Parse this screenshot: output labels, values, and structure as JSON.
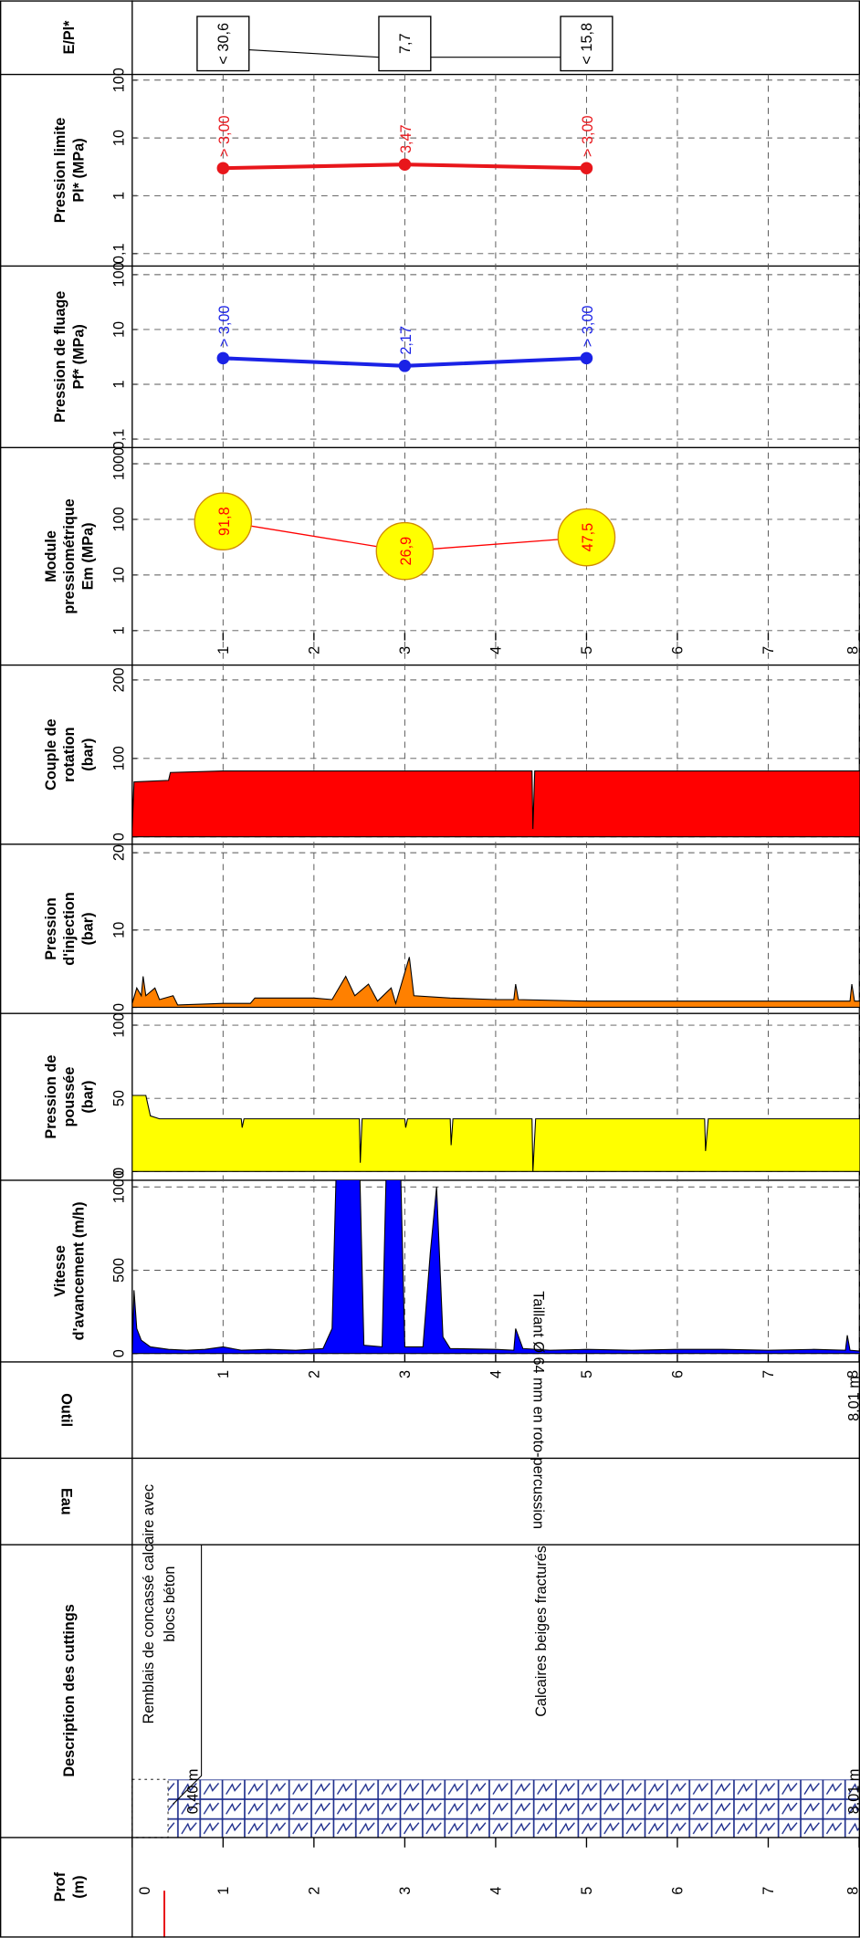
{
  "depth": {
    "title_lines": [
      "Prof",
      "(m)"
    ],
    "xlim": [
      0,
      8.01
    ],
    "xticks": [
      0,
      1,
      2,
      3,
      4,
      5,
      6,
      7,
      8
    ]
  },
  "chart_data": [
    {
      "type": "boxes",
      "title": "E/Pl*",
      "x": [
        1,
        3,
        5
      ],
      "values": [
        30.6,
        7.7,
        15.8
      ],
      "value_labels": [
        "< 30,6",
        "7,7",
        "< 15,8"
      ]
    },
    {
      "type": "line",
      "title_lines": [
        "Pression limite",
        "Pl* (MPa)"
      ],
      "log_y": true,
      "color": "#e8161b",
      "x": [
        1,
        3,
        5
      ],
      "values": [
        3.0,
        3.47,
        3.0
      ],
      "value_labels": [
        "> 3,00",
        "3,47",
        "> 3,00"
      ],
      "ylim": [
        0.061,
        125
      ],
      "yticks": [
        {
          "value": 0.1,
          "label": "0,1"
        },
        1,
        10,
        100
      ],
      "grid": true
    },
    {
      "type": "line",
      "title_lines": [
        "Pression de fluage",
        "Pf* (MPa)"
      ],
      "log_y": true,
      "color": "#1a22e6",
      "x": [
        1,
        3,
        5
      ],
      "values": [
        3.0,
        2.17,
        3.0
      ],
      "value_labels": [
        "> 3,00",
        "2,17",
        "> 3,00"
      ],
      "ylim": [
        0.07,
        144
      ],
      "yticks": [
        {
          "value": 0.1,
          "label": "0,1"
        },
        1,
        10,
        100
      ],
      "grid": true
    },
    {
      "type": "bubble",
      "title_lines": [
        "Module",
        "pressiométrique",
        "Em (MPa)"
      ],
      "log_y": true,
      "color": "#ff0000",
      "marker_color": "#ffff00",
      "x": [
        1,
        3,
        5
      ],
      "values": [
        91.8,
        26.9,
        47.5
      ],
      "value_labels": [
        "91,8",
        "26,9",
        "47,5"
      ],
      "ylim": [
        0.24,
        1950
      ],
      "yticks": [
        1,
        10,
        100,
        1000
      ],
      "grid": true
    },
    {
      "type": "area",
      "title_lines": [
        "Couple de",
        "rotation",
        "(bar)"
      ],
      "color": "#ff0000",
      "x": [
        0,
        0.02,
        0.4,
        0.42,
        1.0,
        2.0,
        3.0,
        4.4,
        4.41,
        4.43,
        8.01
      ],
      "values": [
        10,
        70,
        72,
        82,
        84,
        84,
        84,
        84,
        10,
        84,
        84
      ],
      "ylim": [
        -9.4,
        219
      ],
      "yticks": [
        0,
        100,
        200
      ],
      "grid": true
    },
    {
      "type": "area",
      "title_lines": [
        "Pression",
        "d'injection",
        "(bar)"
      ],
      "color": "#ff8000",
      "x": [
        0,
        0.05,
        0.1,
        0.12,
        0.15,
        0.25,
        0.3,
        0.45,
        0.5,
        1.0,
        1.3,
        1.35,
        2.0,
        2.2,
        2.35,
        2.45,
        2.6,
        2.7,
        2.85,
        2.9,
        3.05,
        3.1,
        3.5,
        4.0,
        4.2,
        4.22,
        4.25,
        5.0,
        6.0,
        7.0,
        7.9,
        7.92,
        7.95,
        8.01
      ],
      "values": [
        0.5,
        2.5,
        1.5,
        4,
        1.5,
        2.5,
        1,
        1.5,
        0.3,
        0.5,
        0.5,
        1.2,
        1.2,
        1.0,
        4,
        1.5,
        3,
        0.8,
        2.5,
        0.5,
        6.5,
        1.5,
        1.2,
        1.0,
        1.0,
        3,
        1,
        0.8,
        0.8,
        0.8,
        0.8,
        3,
        0.8,
        0.8
      ],
      "ylim": [
        -0.8,
        21.1
      ],
      "yticks": [
        0,
        10,
        20
      ],
      "grid": true
    },
    {
      "type": "area",
      "title_lines": [
        "Pression de",
        "poussée",
        "(bar)"
      ],
      "color": "#ffff00",
      "x": [
        0,
        0.15,
        0.2,
        0.3,
        1.2,
        1.21,
        1.23,
        2.5,
        2.51,
        2.53,
        3.0,
        3.01,
        3.03,
        3.5,
        3.51,
        3.53,
        4.4,
        4.41,
        4.44,
        6.3,
        6.31,
        6.34,
        8.01
      ],
      "values": [
        52,
        52,
        38,
        36,
        36,
        30,
        36,
        36,
        6,
        36,
        36,
        30,
        36,
        36,
        18,
        36,
        36,
        0,
        36,
        36,
        14,
        36,
        36
      ],
      "ylim": [
        -6,
        108
      ],
      "yticks": [
        0,
        50,
        100
      ],
      "grid": true
    },
    {
      "type": "area",
      "title_lines": [
        "Vitesse",
        "d'avancement (m/h)"
      ],
      "color": "#0000ff",
      "x": [
        0,
        0.02,
        0.05,
        0.1,
        0.2,
        0.4,
        0.6,
        0.8,
        1.0,
        1.2,
        1.5,
        1.8,
        2.1,
        2.2,
        2.25,
        2.5,
        2.55,
        2.75,
        2.8,
        2.95,
        3.0,
        3.2,
        3.28,
        3.35,
        3.42,
        3.5,
        4.0,
        4.2,
        4.22,
        4.3,
        4.6,
        5.0,
        5.5,
        6.0,
        6.5,
        7.0,
        7.5,
        7.85,
        7.87,
        7.9,
        8.01
      ],
      "values": [
        0,
        380,
        150,
        80,
        40,
        25,
        20,
        25,
        40,
        20,
        25,
        20,
        30,
        150,
        1200,
        1200,
        50,
        40,
        1200,
        1200,
        40,
        40,
        600,
        1000,
        100,
        30,
        25,
        20,
        150,
        30,
        20,
        25,
        20,
        25,
        25,
        20,
        25,
        20,
        110,
        20,
        15
      ],
      "ylim": [
        -50,
        1040
      ],
      "yticks": [
        0,
        500,
        1000
      ],
      "grid": true
    }
  ],
  "tool": {
    "title": "Outil",
    "text": "Taillant Ø 64 mm en roto-percussion",
    "bottom_label": "8,01 m"
  },
  "water": {
    "title": "Eau"
  },
  "description": {
    "title": "Description des cuttings",
    "layers": [
      {
        "text_lines": [
          "Remblais de concassé calcaire avec",
          "blocs béton"
        ],
        "bottom_label": "0,40 m"
      },
      {
        "text_lines": [
          "Calcaires beiges fracturés"
        ],
        "bottom_label": "8,01 m"
      }
    ]
  }
}
